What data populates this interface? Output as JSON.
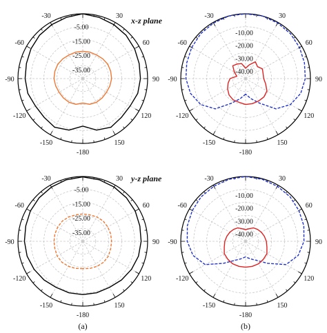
{
  "plane_labels": {
    "top": "x-z plane",
    "bottom": "y-z plane"
  },
  "captions": {
    "a": "(a)",
    "b": "(b)"
  },
  "chart_data": [
    {
      "type": "polar",
      "panel": "a",
      "row": "x-z plane",
      "angle_ticks": [
        "-30",
        "-60",
        "-90",
        "-120",
        "-150",
        "-180",
        "150",
        "120",
        "90",
        "60",
        "30"
      ],
      "radial_tick_labels": [
        "-5.00",
        "-15.00",
        "-25.00",
        "-35.00"
      ],
      "rlim": [
        -45,
        0
      ],
      "grid": true,
      "series": [
        {
          "color": "#000000",
          "dash": "solid",
          "theta": [
            -180,
            -165,
            -150,
            -135,
            -120,
            -105,
            -90,
            -75,
            -60,
            -45,
            -30,
            -15,
            0,
            15,
            30,
            45,
            60,
            75,
            90,
            105,
            120,
            135,
            150,
            165,
            180
          ],
          "r": [
            -12,
            -8,
            -6,
            -7,
            -7,
            -5.5,
            -5,
            -4.5,
            -3.5,
            -2.5,
            -1.8,
            -1,
            0,
            -1,
            -1.8,
            -2.5,
            -3.5,
            -4.5,
            -5,
            -5.5,
            -7,
            -7,
            -6,
            -8,
            -12
          ]
        },
        {
          "color": "#ee7733",
          "dash": "solid",
          "theta": [
            -180,
            -165,
            -150,
            -135,
            -120,
            -105,
            -90,
            -75,
            -60,
            -45,
            -30,
            -15,
            0,
            15,
            30,
            45,
            60,
            75,
            90,
            105,
            120,
            135,
            150,
            165,
            180
          ],
          "r": [
            -28,
            -26.5,
            -26,
            -26,
            -26,
            -25.5,
            -25,
            -25,
            -25,
            -25.5,
            -26,
            -26,
            -26,
            -26,
            -26,
            -25.5,
            -25,
            -25,
            -25,
            -25.5,
            -26,
            -26,
            -26,
            -26.5,
            -28
          ]
        }
      ]
    },
    {
      "type": "polar",
      "panel": "b",
      "row": "x-z plane",
      "angle_ticks": [
        "-30",
        "-60",
        "-90",
        "-120",
        "-150",
        "-180",
        "150",
        "120",
        "90",
        "60",
        "30"
      ],
      "radial_tick_labels": [
        "-10.00",
        "-20.00",
        "-30.00",
        "-40.00"
      ],
      "rlim": [
        -50,
        0
      ],
      "grid": true,
      "series": [
        {
          "color": "#2233cc",
          "dash": "dashed",
          "theta": [
            -180,
            -165,
            -150,
            -135,
            -120,
            -105,
            -90,
            -75,
            -60,
            -45,
            -30,
            -15,
            0,
            15,
            30,
            45,
            60,
            75,
            90,
            105,
            120,
            135,
            150,
            165,
            180
          ],
          "r": [
            -38,
            -34,
            -28,
            -17,
            -10,
            -6,
            -4,
            -3,
            -2,
            -1,
            -0.5,
            0,
            0,
            0,
            -0.5,
            -1,
            -2,
            -3,
            -4,
            -6,
            -10,
            -17,
            -28,
            -34,
            -38
          ]
        },
        {
          "color": "#dd2222",
          "dash": "solid",
          "theta": [
            -180,
            -165,
            -150,
            -135,
            -120,
            -105,
            -90,
            -75,
            -60,
            -45,
            -30,
            -15,
            0,
            15,
            30,
            45,
            60,
            75,
            90,
            105,
            120,
            135,
            150,
            165,
            180
          ],
          "r": [
            -30,
            -31,
            -31,
            -32,
            -34,
            -36,
            -38,
            -43,
            -40,
            -36,
            -37,
            -38,
            -42,
            -39,
            -35,
            -37,
            -35,
            -36,
            -36,
            -34,
            -31,
            -30,
            -30,
            -30,
            -30
          ]
        }
      ]
    },
    {
      "type": "polar",
      "panel": "a",
      "row": "y-z plane",
      "angle_ticks": [
        "-30",
        "-60",
        "-90",
        "-120",
        "-150",
        "-180",
        "150",
        "120",
        "90",
        "60",
        "30"
      ],
      "radial_tick_labels": [
        "-5.00",
        "-15.00",
        "-25.00",
        "-35.00"
      ],
      "rlim": [
        -45,
        0
      ],
      "grid": true,
      "series": [
        {
          "color": "#000000",
          "dash": "solid",
          "theta": [
            -180,
            -165,
            -150,
            -135,
            -120,
            -105,
            -90,
            -75,
            -60,
            -45,
            -30,
            -15,
            0,
            15,
            30,
            45,
            60,
            75,
            90,
            105,
            120,
            135,
            150,
            165,
            180
          ],
          "r": [
            -8,
            -8,
            -8,
            -7,
            -6,
            -5,
            -4.5,
            -4,
            -3,
            -2.2,
            -1.5,
            -0.8,
            -0.3,
            -0.8,
            -1.5,
            -2.2,
            -3,
            -4,
            -4.5,
            -5,
            -6,
            -7,
            -8,
            -8,
            -8
          ]
        },
        {
          "color": "#ee7733",
          "dash": "dashed",
          "theta": [
            -180,
            -165,
            -150,
            -135,
            -120,
            -105,
            -90,
            -75,
            -60,
            -45,
            -30,
            -15,
            0,
            15,
            30,
            45,
            60,
            75,
            90,
            105,
            120,
            135,
            150,
            165,
            180
          ],
          "r": [
            -26,
            -25.5,
            -25,
            -24.5,
            -24.5,
            -25,
            -25,
            -25,
            -25,
            -25,
            -25.5,
            -26,
            -26,
            -26,
            -25.5,
            -25,
            -25,
            -25,
            -25,
            -25,
            -24.5,
            -24.5,
            -25,
            -25.5,
            -26
          ]
        }
      ]
    },
    {
      "type": "polar",
      "panel": "b",
      "row": "y-z plane",
      "angle_ticks": [
        "-30",
        "-60",
        "-90",
        "-120",
        "-150",
        "-180",
        "150",
        "120",
        "90",
        "60",
        "30"
      ],
      "radial_tick_labels": [
        "-10.00",
        "-20.00",
        "-30.00",
        "-40.00"
      ],
      "rlim": [
        -50,
        0
      ],
      "grid": true,
      "series": [
        {
          "color": "#2233cc",
          "dash": "dashed",
          "theta": [
            -180,
            -165,
            -150,
            -135,
            -120,
            -105,
            -90,
            -75,
            -60,
            -45,
            -30,
            -15,
            0,
            15,
            30,
            45,
            60,
            75,
            90,
            105,
            120,
            135,
            150,
            165,
            180
          ],
          "r": [
            -38,
            -36,
            -33,
            -26,
            -14,
            -8,
            -5,
            -3.5,
            -2.5,
            -1.5,
            -1,
            -0.5,
            0,
            -0.5,
            -1,
            -1.5,
            -2.5,
            -3.5,
            -5,
            -8,
            -14,
            -26,
            -33,
            -36,
            -38
          ]
        },
        {
          "color": "#dd2222",
          "dash": "solid",
          "theta": [
            -180,
            -165,
            -150,
            -135,
            -120,
            -105,
            -90,
            -75,
            -60,
            -45,
            -30,
            -15,
            0,
            15,
            30,
            45,
            60,
            75,
            90,
            105,
            120,
            135,
            150,
            165,
            180
          ],
          "r": [
            -30,
            -30,
            -30,
            -30.5,
            -31,
            -33,
            -34,
            -35,
            -36,
            -37,
            -38,
            -40,
            -41,
            -40,
            -38,
            -37,
            -36,
            -35,
            -34,
            -33,
            -31,
            -30.5,
            -30,
            -30,
            -30
          ]
        }
      ]
    }
  ]
}
